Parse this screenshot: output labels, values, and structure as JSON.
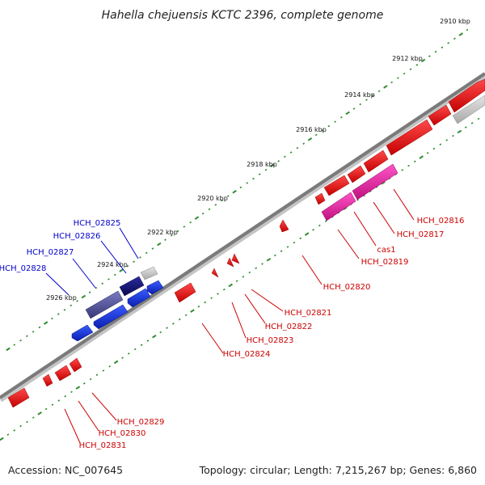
{
  "title": "Hahella chejuensis KCTC 2396, complete genome",
  "footer": {
    "accession": "Accession: NC_007645",
    "stats": "Topology: circular; Length: 7,215,267 bp; Genes: 6,860"
  },
  "colors": {
    "backbone": "#8a8a8a",
    "tick": "#2e8b2e",
    "forward_gene": "#ee1111",
    "reverse_gene": "#1133dd",
    "cas_gene": "#e8199e",
    "navy_gene": "#14147a",
    "slate_gene": "#555599",
    "pseudo_gene": "#c8c8c8"
  },
  "tick_labels": [
    "2910 kbp",
    "2912 kbp",
    "2914 kbp",
    "2916 kbp",
    "2918 kbp",
    "2920 kbp",
    "2922 kbp",
    "2924 kbp",
    "2926 kbp"
  ],
  "gene_labels": {
    "blue": [
      "HCH_02825",
      "HCH_02826",
      "HCH_02827",
      "HCH_02828"
    ],
    "red": [
      "HCH_02816",
      "HCH_02817",
      "cas1",
      "HCH_02819",
      "HCH_02820",
      "HCH_02821",
      "HCH_02822",
      "HCH_02823",
      "HCH_02824",
      "HCH_02829",
      "HCH_02830",
      "HCH_02831"
    ]
  }
}
